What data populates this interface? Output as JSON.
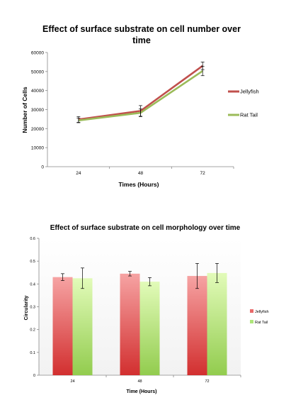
{
  "chart_data": [
    {
      "type": "line",
      "title": "Effect of surface substrate on cell number over time",
      "xlabel": "Times (Hours)",
      "ylabel": "Number of Cells",
      "categories": [
        "24",
        "48",
        "72"
      ],
      "ylim": [
        0,
        60000
      ],
      "yticks": [
        "0",
        "10000",
        "20000",
        "30000",
        "40000",
        "50000",
        "60000"
      ],
      "grid": false,
      "legend": "right",
      "series": [
        {
          "name": "Jellyfish",
          "color": "#c0504d",
          "values": [
            24800,
            29300,
            53000
          ],
          "errors": [
            1500,
            2800,
            2000
          ]
        },
        {
          "name": "Rat Tail",
          "color": "#9bbb59",
          "values": [
            24300,
            28300,
            50300
          ],
          "errors": [
            1200,
            2000,
            2500
          ]
        }
      ]
    },
    {
      "type": "bar",
      "title": "Effect of surface substrate on cell morphology over time",
      "xlabel": "Time (Hours)",
      "ylabel": "Circularity",
      "categories": [
        "24",
        "48",
        "72"
      ],
      "ylim": [
        0,
        0.6
      ],
      "yticks": [
        "0",
        "0.1",
        "0.2",
        "0.3",
        "0.4",
        "0.5",
        "0.6"
      ],
      "grid": false,
      "legend": "right",
      "series": [
        {
          "name": "Jellyfish",
          "color": "#e86a6a",
          "values": [
            0.43,
            0.445,
            0.435
          ],
          "errors": [
            0.015,
            0.01,
            0.055
          ]
        },
        {
          "name": "Rat Tail",
          "color": "#aee57a",
          "values": [
            0.425,
            0.41,
            0.448
          ],
          "errors": [
            0.045,
            0.018,
            0.042
          ]
        }
      ]
    }
  ]
}
